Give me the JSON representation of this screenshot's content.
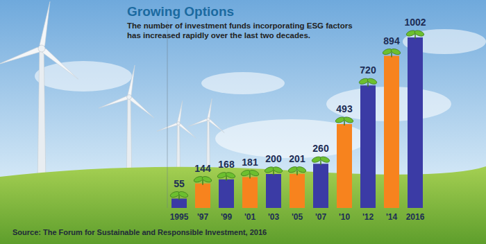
{
  "chart_data": {
    "type": "bar",
    "title": "Growing Options",
    "subtitle": "The number of investment funds incorporating ESG factors has increased rapidly over the last two decades.",
    "annotations": [
      "Source: The Forum for Sustainable and Responsible Investment, 2016"
    ],
    "categories": [
      "1995",
      "'97",
      "'99",
      "'01",
      "'03",
      "'05",
      "'07",
      "'10",
      "'12",
      "'14",
      "2016"
    ],
    "values": [
      55,
      144,
      168,
      181,
      200,
      201,
      260,
      493,
      720,
      894,
      1002
    ],
    "colors": [
      "#3b3ba5",
      "#f7831e",
      "#3b3ba5",
      "#f7831e",
      "#3b3ba5",
      "#f7831e",
      "#3b3ba5",
      "#f7831e",
      "#3b3ba5",
      "#f7831e",
      "#3b3ba5"
    ],
    "ylim": [
      0,
      1100
    ],
    "data_labels": true,
    "tick_labels": "x",
    "grid": false
  }
}
